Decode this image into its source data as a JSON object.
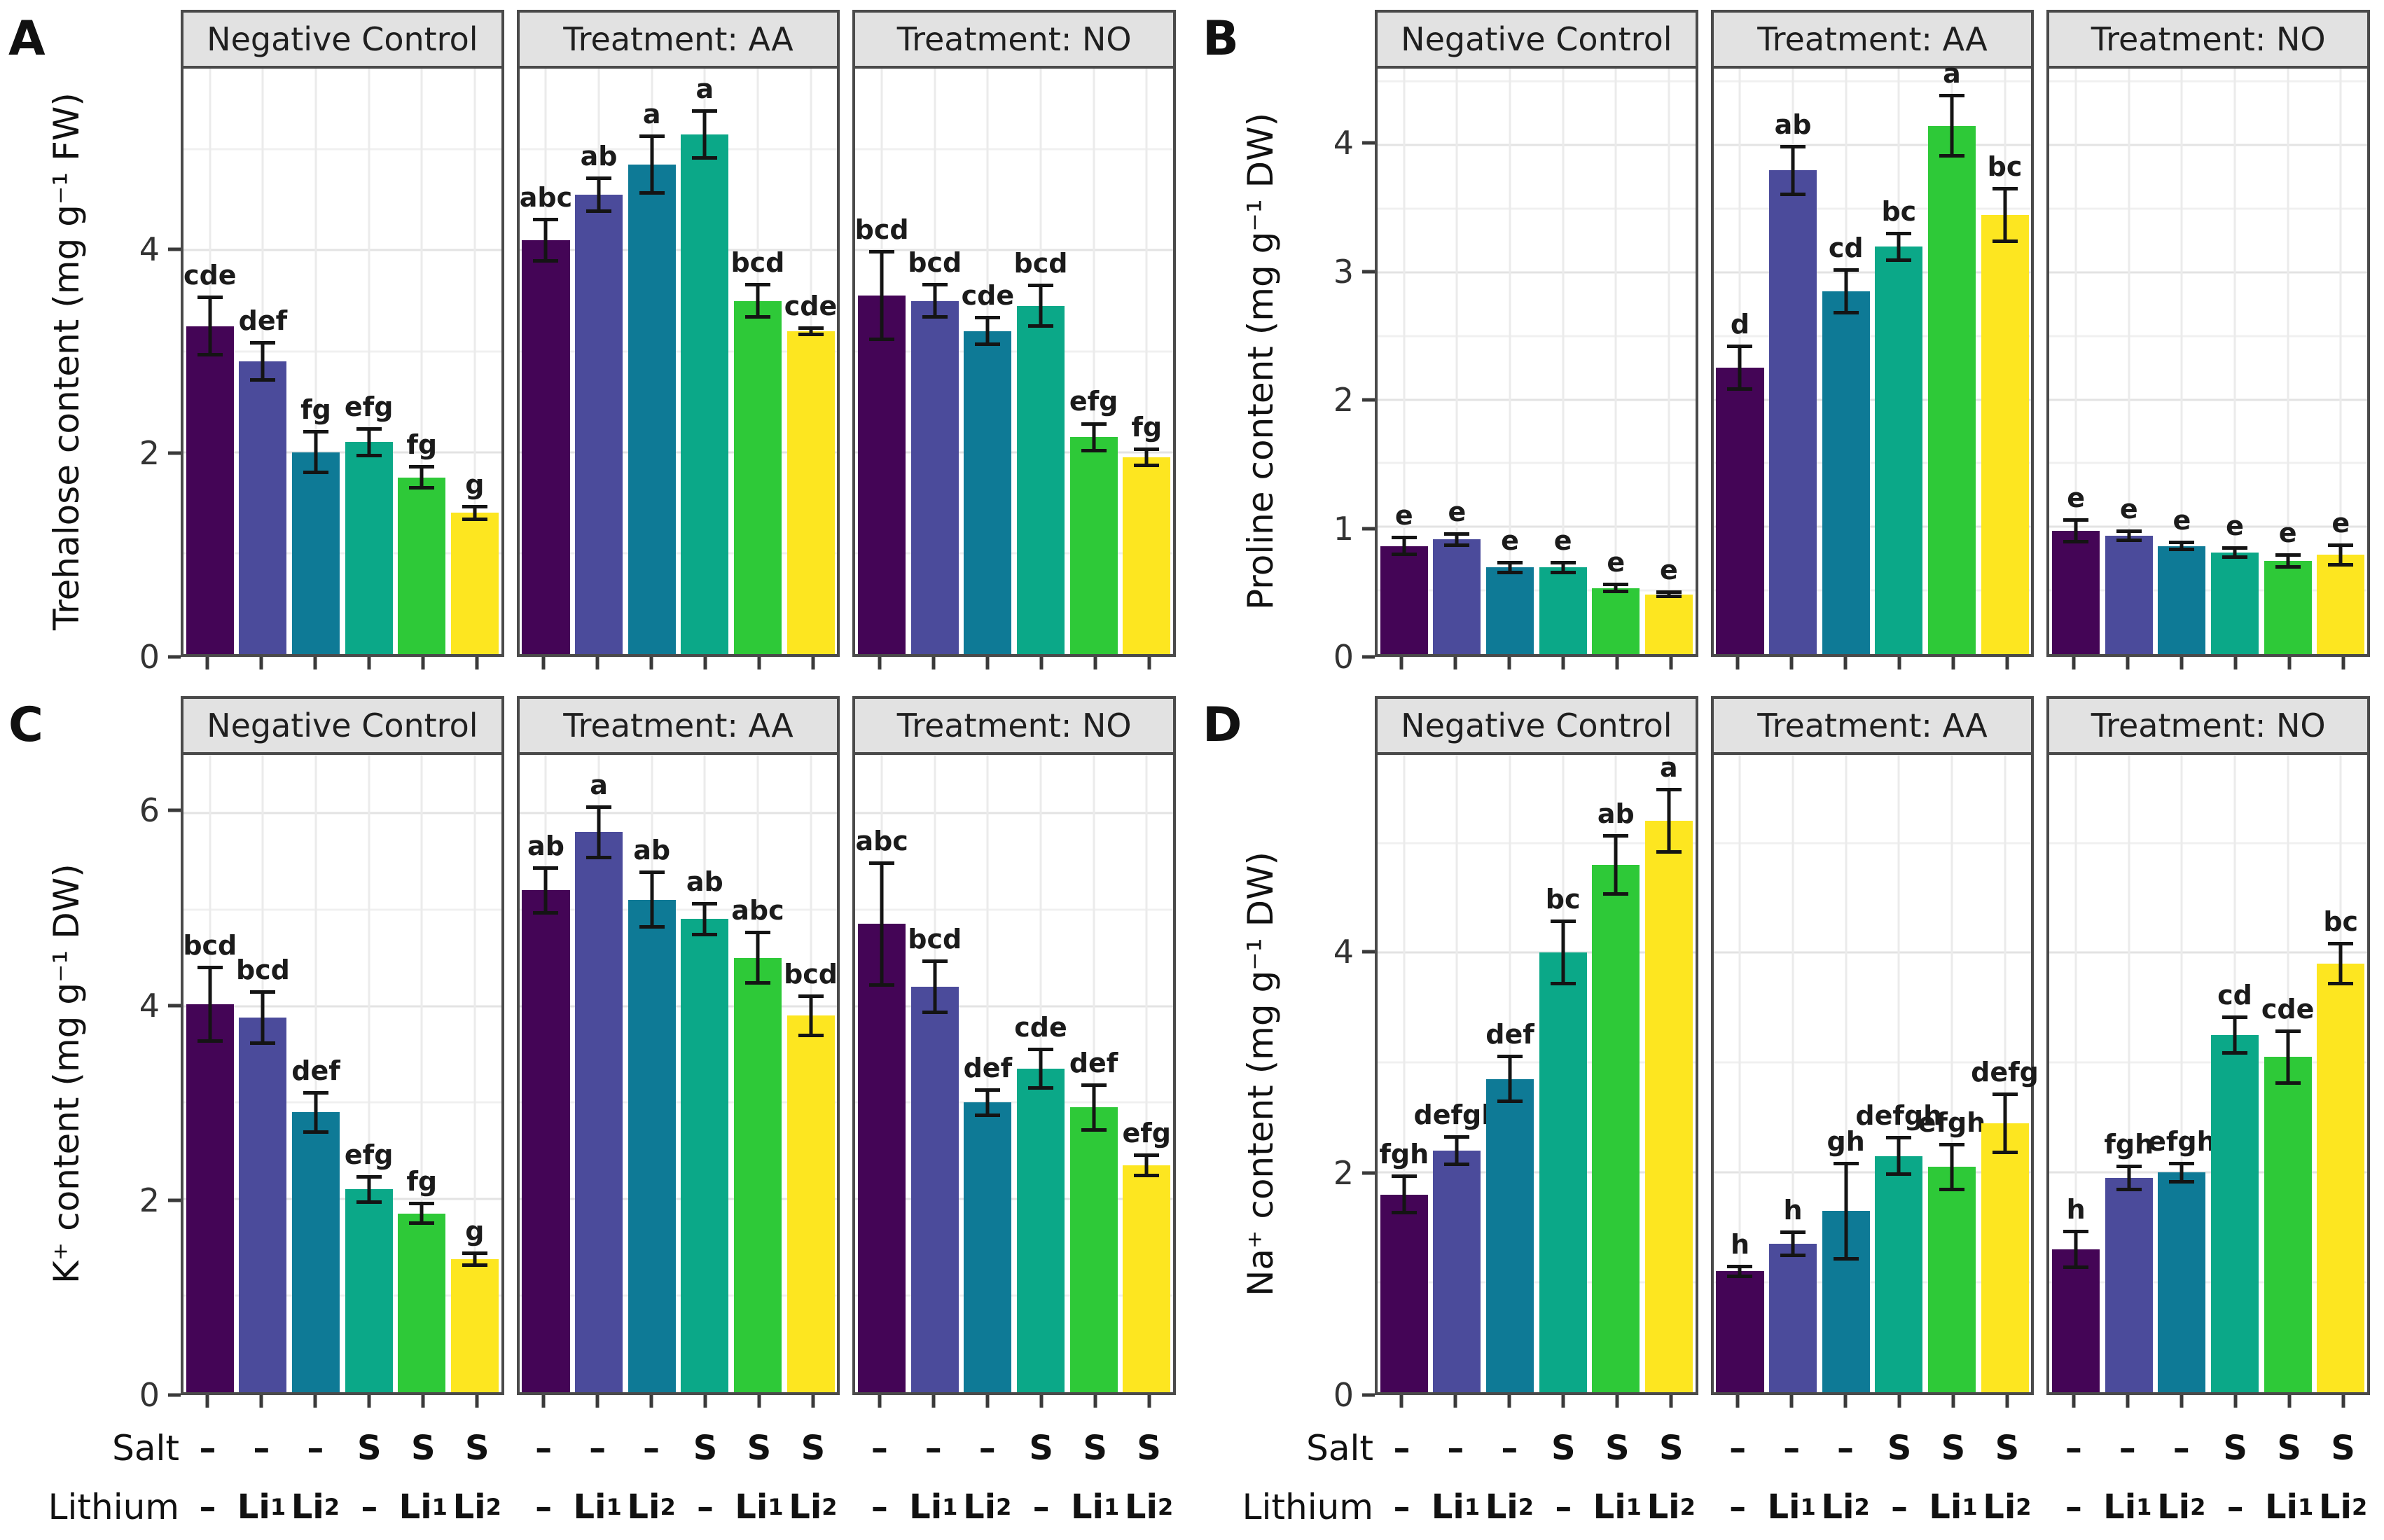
{
  "chart_data": {
    "type": "bar",
    "bar_colors": [
      "#440556",
      "#4b4b9b",
      "#0e7a96",
      "#0ba888",
      "#2ec938",
      "#fde620"
    ],
    "error_bar_color": "#141414",
    "x_row_labels": [
      "Salt",
      "Lithium"
    ],
    "x_rows": {
      "salt": [
        "–",
        "–",
        "–",
        "S",
        "S",
        "S"
      ],
      "lithium": [
        "–",
        "Li₁",
        "Li₂",
        "–",
        "Li₁",
        "Li₂"
      ]
    },
    "facet_labels": [
      "Negative Control",
      "Treatment: AA",
      "Treatment: NO"
    ],
    "panels": [
      {
        "id": "A",
        "ylabel": "Trehalose content (mg g⁻¹ FW)",
        "yticks": [
          0,
          2,
          4
        ],
        "ylim": [
          0,
          5.8
        ],
        "facets": [
          {
            "label": "Negative Control",
            "values": [
              3.25,
              2.9,
              2.0,
              2.1,
              1.75,
              1.4
            ],
            "errors": [
              0.3,
              0.2,
              0.22,
              0.15,
              0.12,
              0.08
            ],
            "letters": [
              "cde",
              "def",
              "fg",
              "efg",
              "fg",
              "g"
            ]
          },
          {
            "label": "Treatment: AA",
            "values": [
              4.1,
              4.55,
              4.85,
              5.15,
              3.5,
              3.2
            ],
            "errors": [
              0.22,
              0.18,
              0.3,
              0.25,
              0.18,
              0.05
            ],
            "letters": [
              "abc",
              "ab",
              "a",
              "a",
              "bcd",
              "cde"
            ]
          },
          {
            "label": "Treatment: NO",
            "values": [
              3.55,
              3.5,
              3.2,
              3.45,
              2.15,
              1.95
            ],
            "errors": [
              0.45,
              0.18,
              0.15,
              0.22,
              0.15,
              0.1
            ],
            "letters": [
              "bcd",
              "bcd",
              "cde",
              "bcd",
              "efg",
              "fg"
            ]
          }
        ]
      },
      {
        "id": "B",
        "ylabel": "Proline content (mg g⁻¹ DW)",
        "yticks": [
          0,
          1,
          2,
          3,
          4
        ],
        "ylim": [
          0,
          4.6
        ],
        "facets": [
          {
            "label": "Negative Control",
            "values": [
              0.85,
              0.9,
              0.68,
              0.68,
              0.52,
              0.47
            ],
            "errors": [
              0.08,
              0.06,
              0.05,
              0.05,
              0.04,
              0.03
            ],
            "letters": [
              "e",
              "e",
              "e",
              "e",
              "e",
              "e"
            ]
          },
          {
            "label": "Treatment: AA",
            "values": [
              2.25,
              3.8,
              2.85,
              3.2,
              4.15,
              3.45
            ],
            "errors": [
              0.18,
              0.2,
              0.18,
              0.12,
              0.25,
              0.22
            ],
            "letters": [
              "d",
              "ab",
              "cd",
              "bc",
              "a",
              "bc"
            ]
          },
          {
            "label": "Treatment: NO",
            "values": [
              0.97,
              0.93,
              0.85,
              0.8,
              0.73,
              0.78
            ],
            "errors": [
              0.1,
              0.05,
              0.04,
              0.05,
              0.06,
              0.09
            ],
            "letters": [
              "e",
              "e",
              "e",
              "e",
              "e",
              "e"
            ]
          }
        ]
      },
      {
        "id": "C",
        "ylabel": "K⁺ content (mg g⁻¹ DW)",
        "yticks": [
          0,
          2,
          4,
          6
        ],
        "ylim": [
          0,
          6.6
        ],
        "facets": [
          {
            "label": "Negative Control",
            "values": [
              4.02,
              3.88,
              2.9,
              2.1,
              1.85,
              1.38
            ],
            "errors": [
              0.4,
              0.28,
              0.22,
              0.15,
              0.12,
              0.08
            ],
            "letters": [
              "bcd",
              "bcd",
              "def",
              "efg",
              "fg",
              "g"
            ]
          },
          {
            "label": "Treatment: AA",
            "values": [
              5.2,
              5.8,
              5.1,
              4.9,
              4.5,
              3.9
            ],
            "errors": [
              0.25,
              0.28,
              0.3,
              0.18,
              0.28,
              0.22
            ],
            "letters": [
              "ab",
              "a",
              "ab",
              "ab",
              "abc",
              "bcd"
            ]
          },
          {
            "label": "Treatment: NO",
            "values": [
              4.85,
              4.2,
              3.0,
              3.35,
              2.95,
              2.35
            ],
            "errors": [
              0.65,
              0.28,
              0.15,
              0.22,
              0.25,
              0.12
            ],
            "letters": [
              "abc",
              "bcd",
              "def",
              "cde",
              "def",
              "efg"
            ]
          }
        ]
      },
      {
        "id": "D",
        "ylabel": "Na⁺ content (mg g⁻¹ DW)",
        "yticks": [
          0,
          2,
          4
        ],
        "ylim": [
          0,
          5.8
        ],
        "facets": [
          {
            "label": "Negative Control",
            "values": [
              1.8,
              2.2,
              2.85,
              4.0,
              4.8,
              5.2
            ],
            "errors": [
              0.18,
              0.14,
              0.22,
              0.3,
              0.28,
              0.3
            ],
            "letters": [
              "fgh",
              "defgh",
              "def",
              "bc",
              "ab",
              "a"
            ]
          },
          {
            "label": "Treatment: AA",
            "values": [
              1.1,
              1.35,
              1.65,
              2.15,
              2.05,
              2.45
            ],
            "errors": [
              0.06,
              0.12,
              0.45,
              0.18,
              0.22,
              0.28
            ],
            "letters": [
              "h",
              "h",
              "gh",
              "defgh",
              "efgh",
              "defg"
            ]
          },
          {
            "label": "Treatment: NO",
            "values": [
              1.3,
              1.95,
              2.0,
              3.25,
              3.05,
              3.9
            ],
            "errors": [
              0.18,
              0.12,
              0.1,
              0.18,
              0.25,
              0.2
            ],
            "letters": [
              "h",
              "fgh",
              "efgh",
              "cd",
              "cde",
              "bc"
            ]
          }
        ]
      }
    ]
  }
}
